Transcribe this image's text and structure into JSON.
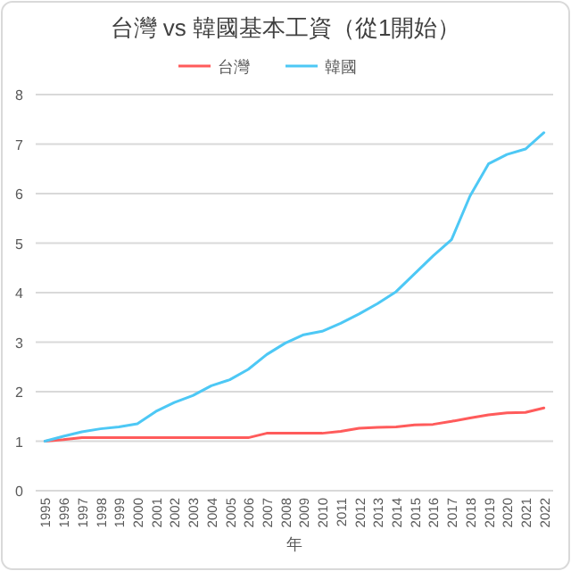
{
  "chart_data": {
    "type": "line",
    "title": "台灣 vs 韓國基本工資（從1開始）",
    "xlabel": "年",
    "categories": [
      "1995",
      "1996",
      "1997",
      "1998",
      "1999",
      "2000",
      "2001",
      "2002",
      "2003",
      "2004",
      "2005",
      "2006",
      "2007",
      "2008",
      "2009",
      "2010",
      "2011",
      "2012",
      "2013",
      "2014",
      "2015",
      "2016",
      "2017",
      "2018",
      "2019",
      "2020",
      "2021",
      "2022"
    ],
    "series": [
      {
        "name": "台灣",
        "color": "#ff5b5b",
        "values": [
          1.0,
          1.03,
          1.07,
          1.07,
          1.07,
          1.07,
          1.07,
          1.07,
          1.07,
          1.07,
          1.07,
          1.07,
          1.16,
          1.16,
          1.16,
          1.16,
          1.2,
          1.26,
          1.28,
          1.29,
          1.33,
          1.34,
          1.4,
          1.47,
          1.53,
          1.57,
          1.58,
          1.67
        ]
      },
      {
        "name": "韓國",
        "color": "#4dc8f5",
        "values": [
          1.0,
          1.1,
          1.19,
          1.25,
          1.29,
          1.35,
          1.6,
          1.78,
          1.92,
          2.12,
          2.24,
          2.45,
          2.75,
          2.98,
          3.15,
          3.22,
          3.38,
          3.57,
          3.78,
          4.02,
          4.38,
          4.74,
          5.07,
          5.95,
          6.6,
          6.79,
          6.9,
          7.23
        ]
      }
    ],
    "ylim": [
      0,
      8
    ],
    "yticks": [
      0,
      1,
      2,
      3,
      4,
      5,
      6,
      7,
      8
    ],
    "grid": "y",
    "legend": "top",
    "marker": "none",
    "line_style": "solid"
  }
}
